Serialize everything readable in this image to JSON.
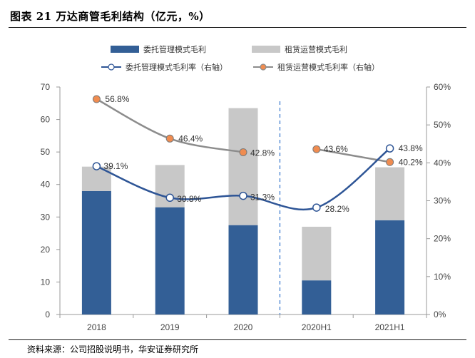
{
  "header": {
    "title": "图表 21 万达商管毛利结构（亿元，%）"
  },
  "footer": {
    "source": "资料来源：公司招股说明书，华安证券研究所"
  },
  "colors": {
    "bar_self": "#335F96",
    "bar_lease": "#C8C8C8",
    "line_self": "#2E5596",
    "line_lease": "#8C8C8C",
    "marker_lease": "#F08C50",
    "divider": "#5B8FD6"
  },
  "chart_data": {
    "type": "bar",
    "stacked": true,
    "categories": [
      "2018",
      "2019",
      "2020",
      "2020H1",
      "2021H1"
    ],
    "series": [
      {
        "name": "委托管理模式毛利",
        "values": [
          38,
          33,
          27.5,
          10.5,
          29
        ]
      },
      {
        "name": "租赁运营模式毛利",
        "values": [
          7.5,
          13,
          36,
          16.5,
          16.3
        ]
      }
    ],
    "line_series": [
      {
        "name": "委托管理模式毛利率（右轴）",
        "values": [
          39.1,
          30.8,
          31.3,
          28.2,
          43.8
        ],
        "labels": [
          "39.1%",
          "30.8%",
          "31.3%",
          "28.2%",
          "43.8%"
        ]
      },
      {
        "name": "租赁运营模式毛利率（右轴）",
        "values": [
          56.8,
          46.4,
          42.8,
          43.6,
          40.2
        ],
        "labels": [
          "56.8%",
          "46.4%",
          "42.8%",
          "43.6%",
          "40.2%"
        ]
      }
    ],
    "ylim": [
      0,
      70
    ],
    "y_ticks": [
      "0",
      "10",
      "20",
      "30",
      "40",
      "50",
      "60",
      "70"
    ],
    "y2lim": [
      0,
      60
    ],
    "y2_ticks": [
      "0%",
      "10%",
      "20%",
      "30%",
      "40%",
      "50%",
      "60%"
    ],
    "legend_position": "top",
    "grid": false,
    "divider_after_category": "2020"
  }
}
